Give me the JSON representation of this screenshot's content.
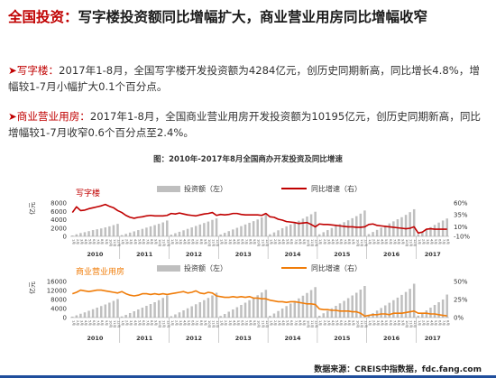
{
  "headline": {
    "prefix": "全国投资：",
    "text": "写字楼投资额同比增幅扩大，商业营业用房同比增幅收窄"
  },
  "para1": {
    "bullet": "➤",
    "lead": "写字楼：",
    "text": "2017年1-8月，全国写字楼开发投资额为4284亿元，创历史同期新高，同比增长4.8%，增幅较1-7月小幅扩大0.1个百分点。"
  },
  "para2": {
    "bullet": "➤",
    "lead": "商业营业用房：",
    "text": "2017年1-8月，全国商业营业用房开发投资额为10195亿元，创历史同期新高，同比增幅较1-7月收窄0.6个百分点至2.4%。"
  },
  "figure_title": "图：2010年-2017年8月全国商办开发投资及同比增速",
  "source": "数据来源：CREIS中指数据，fdc.fang.com",
  "colors": {
    "accent": "#c00000",
    "office_line": "#c00000",
    "commercial_line": "#f07d0a",
    "bars": "#bfbfbf",
    "blue_strip": "#1f4e9c"
  },
  "chart_data": [
    {
      "type": "bar+line",
      "panel_label": "写字楼",
      "legend": {
        "bar": "投资额（左）",
        "line": "同比增速（右）"
      },
      "y_left_ticks": [
        0,
        2000,
        4000,
        6000,
        8000
      ],
      "y_left_tick_labels": [
        "0",
        "2000",
        "4000",
        "6000",
        "8000"
      ],
      "y_left_range": [
        0,
        8000
      ],
      "y_right_ticks": [
        -10,
        10,
        35,
        60
      ],
      "y_right_tick_labels": [
        "-10%",
        "10%",
        "35%",
        "60%"
      ],
      "y_right_range": [
        -10,
        60
      ],
      "years": [
        "2010",
        "2011",
        "2012",
        "2013",
        "2014",
        "2015",
        "2016",
        "2017"
      ],
      "months_per_year": 12,
      "last_year_months": 8,
      "ylabel": "亿元",
      "bars_by_year": [
        [
          200,
          500,
          800,
          1000,
          1250,
          1500,
          1700,
          1900,
          2150,
          2400,
          2700,
          3000
        ],
        [
          300,
          600,
          900,
          1200,
          1500,
          1800,
          2100,
          2400,
          2700,
          3000,
          3350,
          3800
        ],
        [
          400,
          750,
          1100,
          1450,
          1800,
          2150,
          2500,
          2850,
          3200,
          3550,
          3950,
          4300
        ],
        [
          450,
          850,
          1250,
          1650,
          2050,
          2450,
          2850,
          3250,
          3650,
          4050,
          4550,
          5200
        ],
        [
          500,
          950,
          1450,
          1950,
          2400,
          2850,
          3300,
          3750,
          4250,
          4750,
          5300,
          5900
        ],
        [
          500,
          1000,
          1500,
          2000,
          2500,
          2950,
          3400,
          3850,
          4350,
          4850,
          5450,
          6200
        ],
        [
          550,
          1050,
          1550,
          2100,
          2600,
          3100,
          3600,
          4100,
          4600,
          5150,
          5800,
          6500
        ],
        [
          550,
          1100,
          1650,
          2200,
          2750,
          3300,
          3800,
          4284
        ]
      ],
      "growth_by_year": [
        [
          40,
          52,
          44,
          45,
          48,
          50,
          52,
          54,
          57,
          53,
          50,
          44
        ],
        [
          40,
          34,
          30,
          28,
          30,
          31,
          33,
          34,
          33,
          33,
          33,
          34
        ],
        [
          38,
          37,
          39,
          37,
          35,
          34,
          33,
          35,
          37,
          38,
          40,
          34
        ],
        [
          36,
          35,
          36,
          38,
          38,
          36,
          35,
          35,
          35,
          35,
          34,
          38
        ],
        [
          31,
          30,
          26,
          24,
          21,
          20,
          19,
          17,
          18,
          19,
          15,
          10
        ],
        [
          16,
          15,
          15,
          14,
          13,
          12,
          11,
          10,
          10,
          9,
          9,
          10
        ],
        [
          15,
          16,
          13,
          12,
          11,
          10,
          9,
          8,
          7,
          6,
          7,
          10
        ],
        [
          -3,
          -1,
          5,
          6,
          5,
          5,
          5,
          5
        ]
      ]
    },
    {
      "type": "bar+line",
      "panel_label": "商业营业用房",
      "legend": {
        "bar": "投资额（左）",
        "line": "同比增速（右）"
      },
      "y_left_ticks": [
        0,
        4000,
        8000,
        12000,
        16000
      ],
      "y_left_tick_labels": [
        "0",
        "4000",
        "8000",
        "12000",
        "16000"
      ],
      "y_left_range": [
        0,
        16000
      ],
      "y_right_ticks": [
        0,
        25,
        50
      ],
      "y_right_tick_labels": [
        "0%",
        "25%",
        "50%"
      ],
      "y_right_range": [
        0,
        50
      ],
      "years": [
        "2010",
        "2011",
        "2012",
        "2013",
        "2014",
        "2015",
        "2016",
        "2017"
      ],
      "months_per_year": 12,
      "last_year_months": 8,
      "ylabel": "亿元",
      "bars_by_year": [
        [
          400,
          1000,
          1700,
          2300,
          3000,
          3700,
          4400,
          5100,
          5800,
          6600,
          7400,
          8200
        ],
        [
          500,
          1200,
          2000,
          2800,
          3600,
          4400,
          5200,
          6000,
          6800,
          7700,
          8700,
          9800
        ],
        [
          600,
          1400,
          2300,
          3200,
          4100,
          5000,
          5900,
          6800,
          7700,
          8700,
          9800,
          11000
        ],
        [
          700,
          1600,
          2600,
          3600,
          4600,
          5600,
          6600,
          7700,
          8800,
          9900,
          11100,
          12300
        ],
        [
          800,
          1800,
          2900,
          4000,
          5100,
          6200,
          7300,
          8500,
          9700,
          10900,
          12200,
          13500
        ],
        [
          800,
          1900,
          3000,
          4100,
          5200,
          6300,
          7400,
          8600,
          9800,
          11000,
          12400,
          14000
        ],
        [
          850,
          1950,
          3100,
          4250,
          5400,
          6550,
          7700,
          8850,
          10050,
          11350,
          12750,
          15000
        ],
        [
          850,
          2000,
          3200,
          4400,
          5600,
          6800,
          8000,
          10195
        ]
      ],
      "growth_by_year": [
        [
          33,
          35,
          38,
          37,
          36,
          37,
          38,
          38,
          37,
          36,
          35,
          34
        ],
        [
          36,
          33,
          31,
          30,
          31,
          33,
          33,
          32,
          33,
          32,
          33,
          32
        ],
        [
          33,
          34,
          35,
          36,
          34,
          35,
          37,
          34,
          33,
          35,
          34,
          30
        ],
        [
          29,
          28,
          28,
          29,
          28,
          29,
          28,
          29,
          27,
          27,
          26,
          26
        ],
        [
          24,
          23,
          22,
          22,
          21,
          22,
          22,
          21,
          20,
          19,
          19,
          18
        ],
        [
          12,
          11,
          11,
          10,
          10,
          9,
          9,
          9,
          8,
          8,
          6,
          2
        ],
        [
          3,
          4,
          4,
          5,
          5,
          4,
          6,
          6,
          6,
          7,
          8,
          9
        ],
        [
          6,
          6,
          6,
          5,
          5,
          4,
          3,
          2.4
        ]
      ]
    }
  ]
}
